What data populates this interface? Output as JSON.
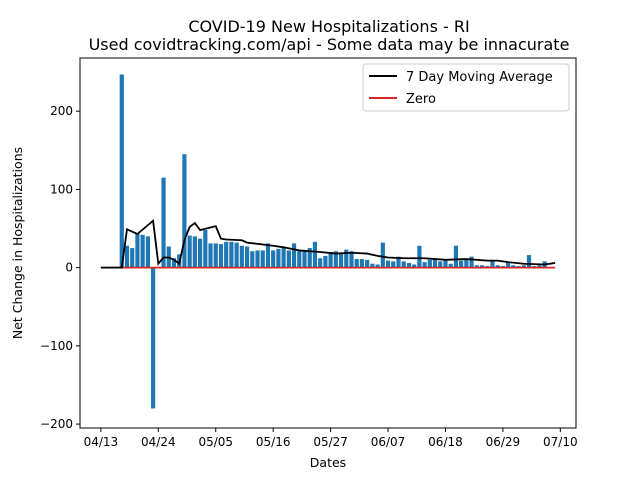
{
  "chart_data": {
    "type": "bar",
    "title": "COVID-19 New Hospitalizations - RI",
    "subtitle": "Used covidtracking.com/api - Some data may be innacurate",
    "xlabel": "Dates",
    "ylabel": "Net Change in Hospitalizations",
    "x_ticks": [
      "04/13",
      "04/24",
      "05/05",
      "05/16",
      "05/27",
      "06/07",
      "06/18",
      "06/29",
      "07/10"
    ],
    "x_tick_days": [
      0,
      11,
      22,
      33,
      44,
      55,
      66,
      77,
      88
    ],
    "y_ticks": [
      -200,
      -100,
      0,
      100,
      200
    ],
    "xlim": [
      -4,
      91
    ],
    "ylim": [
      -205,
      268
    ],
    "legend_position": "top-right",
    "grid": false,
    "series": [
      {
        "name": "Net Change in Hospitalizations",
        "kind": "bar",
        "color": "#1f77b4",
        "start_date": "04/17",
        "values": [
          247,
          28,
          25,
          43,
          42,
          40,
          -180,
          0,
          115,
          27,
          12,
          17,
          145,
          41,
          40,
          37,
          48,
          31,
          31,
          30,
          33,
          33,
          32,
          28,
          27,
          21,
          22,
          22,
          31,
          22,
          24,
          25,
          22,
          31,
          21,
          22,
          25,
          33,
          12,
          15,
          20,
          21,
          19,
          23,
          21,
          11,
          11,
          10,
          5,
          4,
          32,
          9,
          8,
          14,
          8,
          6,
          4,
          28,
          7,
          10,
          12,
          8,
          9,
          5,
          28,
          9,
          10,
          14,
          3,
          3,
          2,
          9,
          3,
          2,
          7,
          3,
          2,
          3,
          16,
          2,
          3,
          8
        ]
      },
      {
        "name": "7 Day Moving Average",
        "kind": "line",
        "color": "#000000",
        "points": [
          [
            "04/13",
            0
          ],
          [
            "04/17",
            0
          ],
          [
            "04/18",
            49
          ],
          [
            "04/19",
            46
          ],
          [
            "04/20",
            43
          ],
          [
            "04/23",
            60
          ],
          [
            "04/24",
            5
          ],
          [
            "04/25",
            13
          ],
          [
            "04/26",
            13
          ],
          [
            "04/27",
            10
          ],
          [
            "04/28",
            5
          ],
          [
            "04/29",
            35
          ],
          [
            "04/30",
            52
          ],
          [
            "05/01",
            57
          ],
          [
            "05/02",
            48
          ],
          [
            "05/05",
            53
          ],
          [
            "05/06",
            37
          ],
          [
            "05/07",
            36
          ],
          [
            "05/10",
            35
          ],
          [
            "05/11",
            32
          ],
          [
            "05/16",
            28
          ],
          [
            "05/18",
            26
          ],
          [
            "05/21",
            22
          ],
          [
            "05/25",
            20
          ],
          [
            "05/28",
            18
          ],
          [
            "05/31",
            19
          ],
          [
            "06/03",
            18
          ],
          [
            "06/05",
            15
          ],
          [
            "06/07",
            13
          ],
          [
            "06/10",
            12
          ],
          [
            "06/14",
            12
          ],
          [
            "06/18",
            10
          ],
          [
            "06/22",
            11
          ],
          [
            "06/26",
            9
          ],
          [
            "06/28",
            9
          ],
          [
            "06/30",
            7
          ],
          [
            "07/03",
            5
          ],
          [
            "07/07",
            4
          ],
          [
            "07/09",
            6
          ]
        ]
      },
      {
        "name": "Zero",
        "kind": "line",
        "color": "#d62728",
        "points": [
          [
            "04/13",
            0
          ],
          [
            "07/09",
            0
          ]
        ]
      }
    ],
    "legend": [
      {
        "label": "7 Day Moving Average",
        "color": "#000000"
      },
      {
        "label": "Zero",
        "color": "#d62728"
      }
    ]
  }
}
